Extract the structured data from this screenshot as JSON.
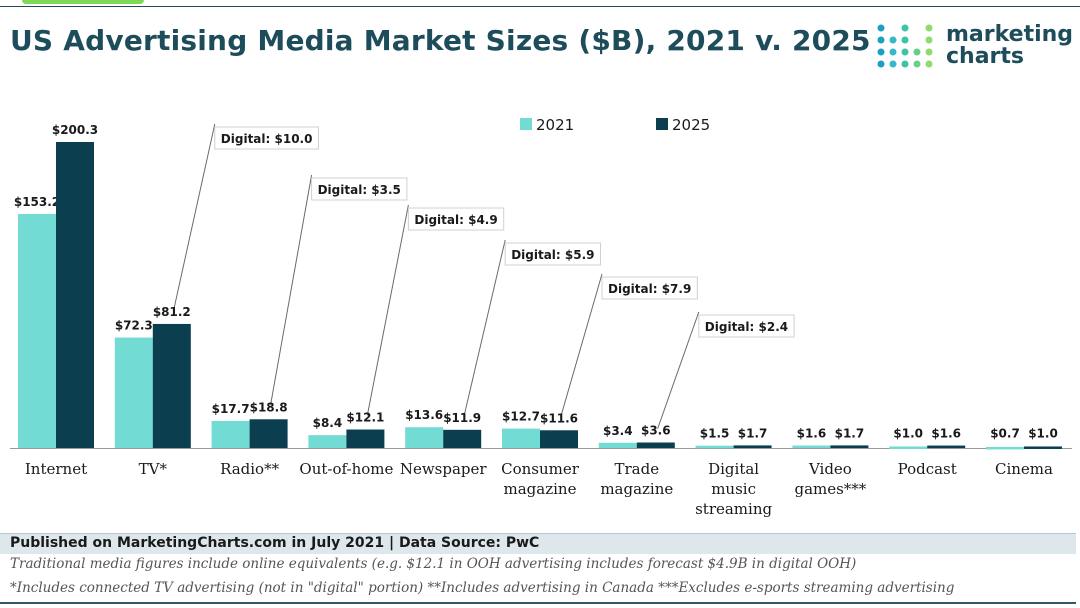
{
  "title": "US Advertising Media Market Sizes ($B), 2021 v. 2025",
  "logo": {
    "line1": "marketing",
    "line2": "charts"
  },
  "colors": {
    "series_2021": "#72dbd4",
    "series_2025": "#0b3f4f",
    "text": "#1a1a1a",
    "title": "#1d4c5b"
  },
  "chart_data": {
    "type": "bar",
    "categories": [
      "Internet",
      "TV*",
      "Radio**",
      "Out-of-home",
      "Newspaper",
      "Consumer magazine",
      "Trade magazine",
      "Digital music streaming",
      "Video games***",
      "Podcast",
      "Cinema"
    ],
    "category_lines": [
      [
        "Internet"
      ],
      [
        "TV*"
      ],
      [
        "Radio**"
      ],
      [
        "Out-of-home"
      ],
      [
        "Newspaper"
      ],
      [
        "Consumer",
        "magazine"
      ],
      [
        "Trade",
        "magazine"
      ],
      [
        "Digital",
        "music",
        "streaming"
      ],
      [
        "Video",
        "games***"
      ],
      [
        "Podcast"
      ],
      [
        "Cinema"
      ]
    ],
    "series": [
      {
        "name": "2021",
        "values": [
          153.2,
          72.3,
          17.7,
          8.4,
          13.6,
          12.7,
          3.4,
          1.5,
          1.6,
          1.0,
          0.7
        ],
        "labels": [
          "$153.2",
          "$72.3",
          "$17.7",
          "$8.4",
          "$13.6",
          "$12.7",
          "$3.4",
          "$1.5",
          "$1.6",
          "$1.0",
          "$0.7"
        ]
      },
      {
        "name": "2025",
        "values": [
          200.3,
          81.2,
          18.8,
          12.1,
          11.9,
          11.6,
          3.6,
          1.7,
          1.7,
          1.6,
          1.0
        ],
        "labels": [
          "$200.3",
          "$81.2",
          "$18.8",
          "$12.1",
          "$11.9",
          "$11.6",
          "$3.6",
          "$1.7",
          "$1.7",
          "$1.6",
          "$1.0"
        ]
      }
    ],
    "annotations": [
      {
        "category": "TV*",
        "text": "Digital: $10.0"
      },
      {
        "category": "Radio**",
        "text": "Digital: $3.5"
      },
      {
        "category": "Out-of-home",
        "text": "Digital: $4.9"
      },
      {
        "category": "Newspaper",
        "text": "Digital: $5.9"
      },
      {
        "category": "Consumer magazine",
        "text": "Digital: $7.9"
      },
      {
        "category": "Trade magazine",
        "text": "Digital: $2.4"
      }
    ],
    "ylim": [
      0,
      200.3
    ],
    "grid": false,
    "legend_position": "top-center"
  },
  "footer": {
    "published": "Published on MarketingCharts.com in July 2021 | Data Source: PwC",
    "note1": "Traditional media figures include online equivalents (e.g. $12.1 in OOH advertising includes forecast $4.9B in digital OOH)",
    "note2": "*Includes connected TV advertising (not in \"digital\" portion) **Includes advertising in Canada ***Excludes e-sports streaming advertising"
  }
}
